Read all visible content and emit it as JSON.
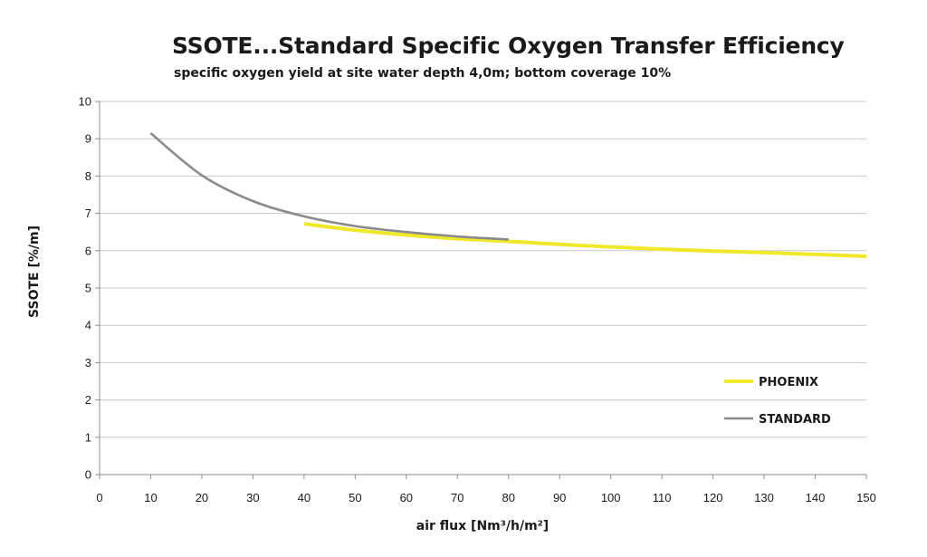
{
  "chart_data": {
    "type": "line",
    "title": "SSOTE...Standard Specific Oxygen Transfer Efficiency",
    "subtitle": "specific oxygen yield at site water depth 4,0m; bottom coverage 10%",
    "xlabel": "air flux [Nm³/h/m²]",
    "ylabel": "SSOTE [%/m]",
    "xlim": [
      0,
      150
    ],
    "ylim": [
      0,
      10
    ],
    "xticks": [
      0,
      10,
      20,
      30,
      40,
      50,
      60,
      70,
      80,
      90,
      100,
      110,
      120,
      130,
      140,
      150
    ],
    "yticks": [
      0,
      1,
      2,
      3,
      4,
      5,
      6,
      7,
      8,
      9,
      10
    ],
    "grid": true,
    "legend_position": "right",
    "series": [
      {
        "name": "PHOENIX",
        "color": "#f0e82a",
        "x": [
          40,
          50,
          60,
          70,
          80,
          90,
          100,
          110,
          120,
          130,
          140,
          150
        ],
        "y": [
          6.72,
          6.55,
          6.42,
          6.32,
          6.25,
          6.17,
          6.1,
          6.04,
          5.99,
          5.95,
          5.9,
          5.85
        ]
      },
      {
        "name": "STANDARD",
        "color": "#8a8a8a",
        "x": [
          10,
          20,
          30,
          40,
          50,
          60,
          70,
          80
        ],
        "y": [
          9.15,
          8.02,
          7.33,
          6.92,
          6.66,
          6.5,
          6.38,
          6.3
        ]
      }
    ]
  }
}
